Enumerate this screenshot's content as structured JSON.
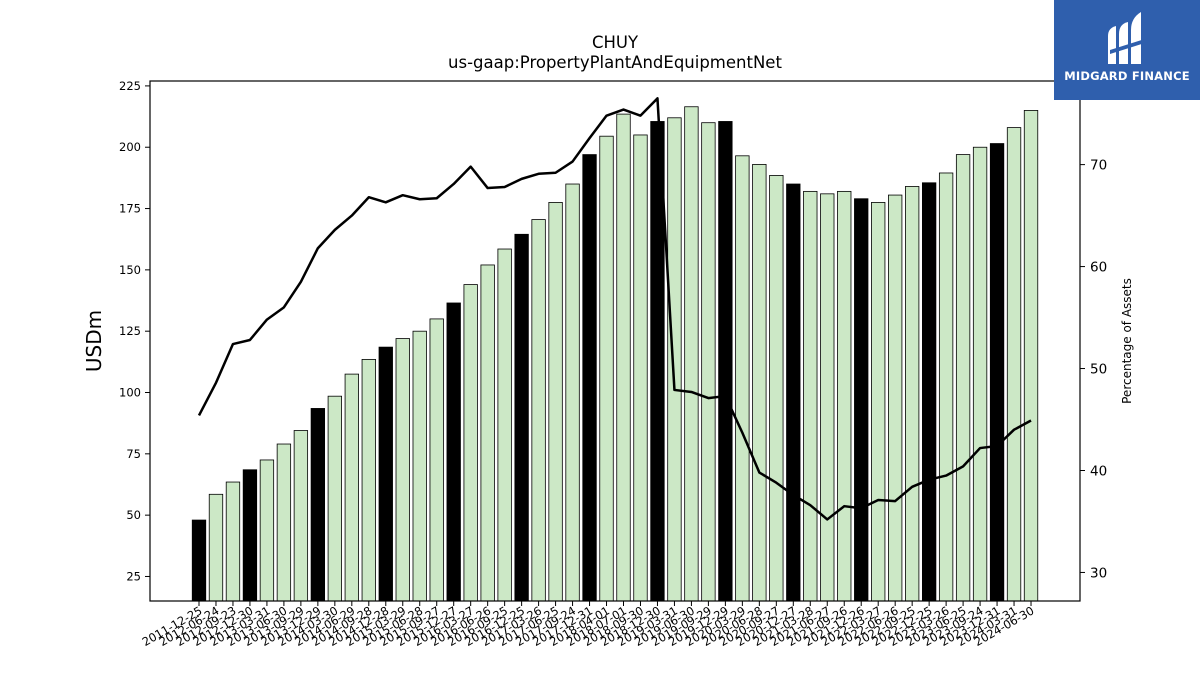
{
  "brand": {
    "name": "MIDGARD FINANCE",
    "bg_color": "#2f5fad"
  },
  "chart_data": {
    "type": "bar",
    "title": "CHUY",
    "subtitle": "us-gaap:PropertyPlantAndEquipmentNet",
    "ylabel": "USDm",
    "ylabel_right": "Percentage of Assets",
    "ylim": [
      15,
      227
    ],
    "ylim_right": [
      27.2,
      78.2
    ],
    "yticks": [
      25,
      50,
      75,
      100,
      125,
      150,
      175,
      200,
      225
    ],
    "yticks_right": [
      30,
      40,
      50,
      60,
      70
    ],
    "grid": false,
    "legend": "none",
    "colors": {
      "bar_normal": "#cce8c6",
      "bar_highlight": "#000000",
      "line": "#000000"
    },
    "categories": [
      "2011-12-25",
      "2012-06-24",
      "2012-09-23",
      "2012-12-30",
      "2013-03-31",
      "2013-06-30",
      "2013-09-29",
      "2013-12-29",
      "2014-03-30",
      "2014-06-29",
      "2014-09-28",
      "2014-12-28",
      "2015-03-29",
      "2015-06-28",
      "2015-09-27",
      "2015-12-27",
      "2016-03-27",
      "2016-06-26",
      "2016-09-25",
      "2016-12-25",
      "2017-03-26",
      "2017-06-25",
      "2017-09-24",
      "2017-12-31",
      "2018-04-01",
      "2018-07-01",
      "2018-09-30",
      "2018-12-30",
      "2019-03-31",
      "2019-06-30",
      "2019-09-29",
      "2019-12-29",
      "2020-03-29",
      "2020-06-28",
      "2020-09-27",
      "2020-12-27",
      "2021-03-28",
      "2021-06-27",
      "2021-09-26",
      "2021-12-26",
      "2022-03-27",
      "2022-06-26",
      "2022-09-25",
      "2022-12-25",
      "2023-03-26",
      "2023-06-25",
      "2023-09-24",
      "2023-12-31",
      "2024-03-31",
      "2024-06-30"
    ],
    "tick_labels": [
      "2011-12-25",
      "2012-06-24",
      "2012-09-23",
      "2012-12-30",
      "2013-03-31",
      "2013-06-30",
      "2013-09-29",
      "2013-12-29",
      "2014-03-30",
      "2014-06-29",
      "2014-09-28",
      "2014-12-28",
      "2015-03-29",
      "2015-06-28",
      "2015-09-27",
      "2015-12-27",
      "2016-03-27",
      "2016-06-26",
      "2016-09-25",
      "2016-12-25",
      "2017-03-26",
      "2017-06-25",
      "2017-09-24",
      "2017-12-31",
      "2018-04-01",
      "2018-07-01",
      "2018-09-30",
      "2018-12-30",
      "2019-03-31",
      "2019-06-30",
      "2019-09-29",
      "2019-12-29",
      "2020-03-29",
      "2020-06-28",
      "2020-09-27",
      "2020-12-27",
      "2021-03-28",
      "2021-06-27",
      "2021-09-26",
      "2021-12-26",
      "2022-03-27",
      "2022-06-26",
      "2022-09-25",
      "2022-12-25",
      "2023-03-26",
      "2023-06-25",
      "2023-09-24",
      "2023-12-31",
      "2024-03-31",
      "2024-06-30"
    ],
    "series": [
      {
        "type": "bar",
        "axis": "left",
        "values": [
          48,
          58.5,
          63.5,
          68.5,
          72.5,
          79,
          84.5,
          93.5,
          98.5,
          107.5,
          113.5,
          118.5,
          122,
          125,
          130,
          136.5,
          144,
          152,
          158.5,
          164.5,
          170.5,
          177.5,
          185,
          197,
          204.5,
          213.5,
          205,
          210.5,
          212,
          216.5,
          210,
          210.5,
          196.5,
          193,
          188.5,
          185,
          182,
          181,
          182,
          179,
          177.5,
          180.5,
          184,
          185.5,
          189.5,
          197,
          200,
          201.5,
          208,
          215
        ],
        "highlight": [
          true,
          false,
          false,
          true,
          false,
          false,
          false,
          true,
          false,
          false,
          false,
          true,
          false,
          false,
          false,
          true,
          false,
          false,
          false,
          true,
          false,
          false,
          false,
          true,
          false,
          false,
          false,
          true,
          false,
          false,
          false,
          true,
          false,
          false,
          false,
          true,
          false,
          false,
          false,
          true,
          false,
          false,
          false,
          true,
          false,
          false,
          false,
          true,
          false,
          false
        ]
      },
      {
        "type": "line",
        "axis": "right",
        "values": [
          45.4,
          48.6,
          52.4,
          52.8,
          54.8,
          56.0,
          58.5,
          61.8,
          63.6,
          65.0,
          66.8,
          66.3,
          67.0,
          66.6,
          66.7,
          68.1,
          69.8,
          67.7,
          67.8,
          68.6,
          69.1,
          69.2,
          70.3,
          72.6,
          74.8,
          75.4,
          74.8,
          76.5,
          47.9,
          47.7,
          47.1,
          47.3,
          43.7,
          39.8,
          38.8,
          37.6,
          36.6,
          35.2,
          36.5,
          36.3,
          37.1,
          37.0,
          38.4,
          39.1,
          39.5,
          40.4,
          42.2,
          42.4,
          44.0,
          44.9
        ]
      }
    ]
  }
}
